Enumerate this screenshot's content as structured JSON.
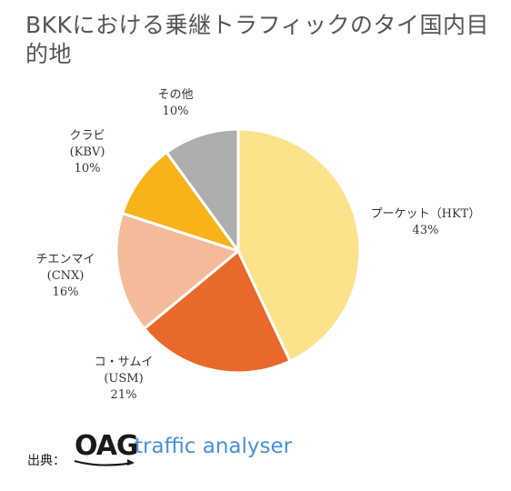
{
  "chart_data": {
    "type": "pie",
    "title": "BKKにおける乗継トラフィックのタイ国内目的地",
    "start_angle_deg": 0,
    "direction": "clockwise",
    "slices": [
      {
        "label": "プーケット（HKT）",
        "lines": [
          "プーケット（HKT）",
          "43%"
        ],
        "value": 43,
        "color": "#fde28c"
      },
      {
        "label": "コ・サムイ（USM）",
        "lines": [
          "コ・サムイ",
          "(USM)",
          "21%"
        ],
        "value": 21,
        "color": "#e8692a"
      },
      {
        "label": "チエンマイ（CNX）",
        "lines": [
          "チエンマイ",
          "(CNX)",
          "16%"
        ],
        "value": 16,
        "color": "#f4bb9a"
      },
      {
        "label": "クラビ（KBV）",
        "lines": [
          "クラビ",
          "(KBV)",
          "10%"
        ],
        "value": 10,
        "color": "#f7b318"
      },
      {
        "label": "その他",
        "lines": [
          "その他",
          "10%"
        ],
        "value": 10,
        "color": "#aeaeae"
      }
    ]
  },
  "source": {
    "label": "出典：",
    "logo_text": "OAG",
    "logo_subtext": "traffic analyser",
    "logo_subtext_color": "#4a8fd8"
  }
}
